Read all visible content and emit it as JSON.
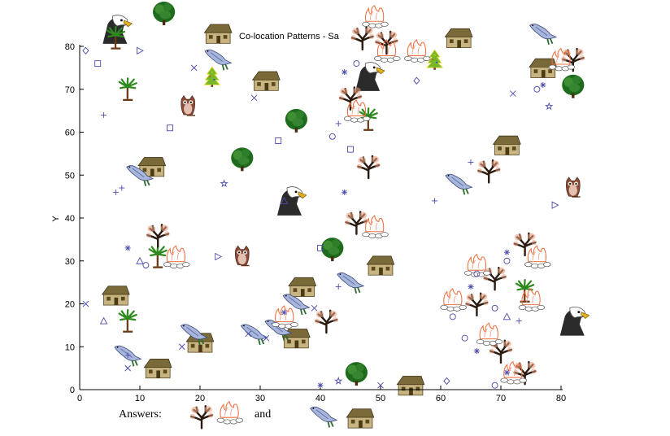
{
  "chart_data": {
    "type": "scatter",
    "title": "Co-location Patterns - Sa",
    "xlabel": "",
    "ylabel": "Y",
    "xlim": [
      0,
      80
    ],
    "ylim": [
      0,
      80
    ],
    "xticks": [
      "0",
      "10",
      "20",
      "30",
      "40",
      "50",
      "60",
      "70",
      "80"
    ],
    "yticks": [
      "0",
      "10",
      "20",
      "30",
      "40",
      "50",
      "60",
      "70",
      "80"
    ],
    "grid": false,
    "legend": "none",
    "marker_color": "#4b4bb0",
    "series": [
      {
        "marker": "plus",
        "points": [
          [
            4,
            64
          ],
          [
            6,
            46
          ],
          [
            7,
            47
          ],
          [
            8,
            8
          ],
          [
            43,
            24
          ],
          [
            43,
            62
          ],
          [
            59,
            44
          ],
          [
            65,
            53
          ],
          [
            73,
            16
          ]
        ]
      },
      {
        "marker": "asterisk",
        "points": [
          [
            8,
            33
          ],
          [
            44,
            74
          ],
          [
            44,
            46
          ],
          [
            65,
            24
          ],
          [
            66,
            9
          ],
          [
            71,
            32
          ],
          [
            71,
            4
          ],
          [
            77,
            71
          ],
          [
            34,
            18
          ],
          [
            40,
            1
          ]
        ]
      },
      {
        "marker": "cross",
        "points": [
          [
            1,
            20
          ],
          [
            8,
            5
          ],
          [
            17,
            10
          ],
          [
            19,
            75
          ],
          [
            28,
            13
          ],
          [
            29,
            68
          ],
          [
            31,
            12
          ],
          [
            39,
            19
          ],
          [
            50,
            1
          ],
          [
            72,
            69
          ]
        ]
      },
      {
        "marker": "circle",
        "points": [
          [
            11,
            29
          ],
          [
            42,
            59
          ],
          [
            46,
            76
          ],
          [
            62,
            17
          ],
          [
            64,
            12
          ],
          [
            66,
            27
          ],
          [
            69,
            1
          ],
          [
            71,
            30
          ],
          [
            76,
            70
          ],
          [
            69,
            19
          ]
        ]
      },
      {
        "marker": "square",
        "points": [
          [
            3,
            76
          ],
          [
            15,
            61
          ],
          [
            33,
            58
          ],
          [
            40,
            33
          ],
          [
            45,
            56
          ]
        ]
      },
      {
        "marker": "diamond",
        "points": [
          [
            1,
            79
          ],
          [
            56,
            72
          ],
          [
            61,
            2
          ]
        ]
      },
      {
        "marker": "triangle-up",
        "points": [
          [
            4,
            16
          ],
          [
            10,
            30
          ],
          [
            34,
            44
          ],
          [
            71,
            17
          ]
        ]
      },
      {
        "marker": "triangle-right",
        "points": [
          [
            10,
            79
          ],
          [
            23,
            31
          ],
          [
            79,
            43
          ]
        ]
      },
      {
        "marker": "pentagram",
        "points": [
          [
            24,
            48
          ],
          [
            43,
            2
          ],
          [
            78,
            66
          ]
        ]
      }
    ],
    "icons": [
      {
        "icon": "eagle-icon",
        "points": [
          [
            6,
            84
          ],
          [
            48,
            73
          ],
          [
            35,
            44
          ],
          [
            82,
            16
          ]
        ]
      },
      {
        "icon": "shrub-icon",
        "points": [
          [
            14,
            88
          ],
          [
            27,
            54
          ],
          [
            36,
            63
          ],
          [
            42,
            33
          ],
          [
            46,
            4
          ],
          [
            82,
            71
          ]
        ]
      },
      {
        "icon": "palm-tree-icon",
        "points": [
          [
            6,
            82
          ],
          [
            8,
            70
          ],
          [
            13,
            31
          ],
          [
            8,
            16
          ],
          [
            48,
            63
          ],
          [
            74,
            23
          ]
        ]
      },
      {
        "icon": "house-icon",
        "points": [
          [
            23,
            83
          ],
          [
            31,
            72
          ],
          [
            12,
            52
          ],
          [
            6,
            22
          ],
          [
            50,
            29
          ],
          [
            37,
            24
          ],
          [
            36,
            12
          ],
          [
            20,
            11
          ],
          [
            13,
            5
          ],
          [
            55,
            1
          ],
          [
            63,
            82
          ],
          [
            77,
            75
          ],
          [
            71,
            57
          ]
        ]
      },
      {
        "icon": "bird-icon",
        "points": [
          [
            23,
            77
          ],
          [
            10,
            50
          ],
          [
            63,
            48
          ],
          [
            19,
            13
          ],
          [
            29,
            13
          ],
          [
            45,
            25
          ],
          [
            36,
            20
          ],
          [
            33,
            14
          ],
          [
            8,
            8
          ],
          [
            77,
            83
          ]
        ]
      },
      {
        "icon": "pine-tree-icon",
        "points": [
          [
            22,
            73
          ],
          [
            59,
            77
          ]
        ]
      },
      {
        "icon": "owl-icon",
        "points": [
          [
            18,
            66
          ],
          [
            27,
            31
          ],
          [
            82,
            47
          ]
        ]
      },
      {
        "icon": "bare-tree-icon",
        "points": [
          [
            47,
            82
          ],
          [
            51,
            81
          ],
          [
            45,
            68
          ],
          [
            48,
            52
          ],
          [
            46,
            39
          ],
          [
            13,
            36
          ],
          [
            41,
            16
          ],
          [
            68,
            51
          ],
          [
            74,
            34
          ],
          [
            69,
            26
          ],
          [
            66,
            20
          ],
          [
            70,
            9
          ],
          [
            74,
            4
          ],
          [
            82,
            77
          ]
        ]
      },
      {
        "icon": "campfire-icon",
        "points": [
          [
            49,
            87
          ],
          [
            51,
            79
          ],
          [
            56,
            79
          ],
          [
            46,
            65
          ],
          [
            49,
            38
          ],
          [
            16,
            31
          ],
          [
            34,
            17
          ],
          [
            66,
            29
          ],
          [
            62,
            21
          ],
          [
            75,
            21
          ],
          [
            68,
            13
          ],
          [
            76,
            31
          ],
          [
            72,
            4
          ],
          [
            80,
            77
          ]
        ]
      }
    ]
  },
  "answers": {
    "label": "Answers:",
    "conjunction": "and",
    "pair1": [
      "bare-tree-icon",
      "campfire-icon"
    ],
    "pair2": [
      "bird-icon",
      "house-icon"
    ]
  }
}
